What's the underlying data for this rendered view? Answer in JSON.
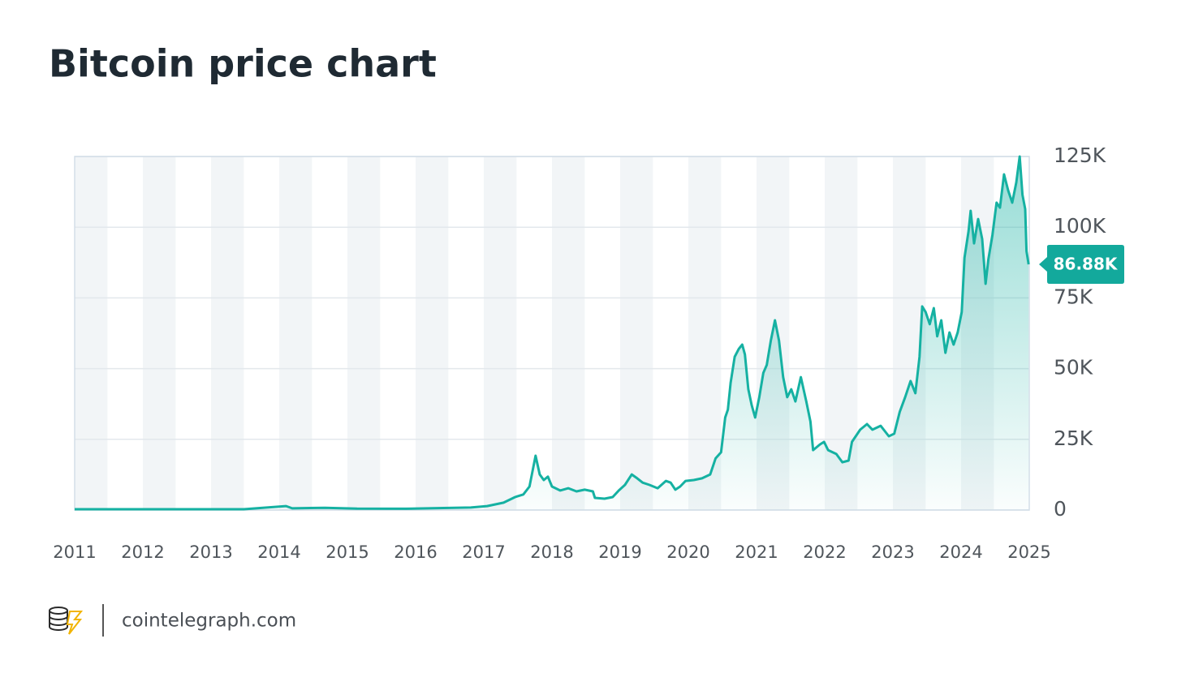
{
  "chart_data": {
    "type": "line",
    "title": "Bitcoin price chart",
    "source": "cointelegraph.com",
    "color": "#15b1a2",
    "x": [
      2011.0,
      2013.48,
      2014.1,
      2014.19,
      2014.67,
      2015.14,
      2015.86,
      2016.33,
      2016.81,
      2017.05,
      2017.29,
      2017.46,
      2017.58,
      2017.67,
      2017.76,
      2017.82,
      2017.88,
      2017.94,
      2018.0,
      2018.12,
      2018.24,
      2018.36,
      2018.48,
      2018.6,
      2018.63,
      2018.77,
      2018.89,
      2018.98,
      2019.07,
      2019.17,
      2019.25,
      2019.33,
      2019.43,
      2019.55,
      2019.67,
      2019.74,
      2019.81,
      2019.88,
      2019.96,
      2020.08,
      2020.2,
      2020.32,
      2020.4,
      2020.48,
      2020.54,
      2020.58,
      2020.62,
      2020.68,
      2020.74,
      2020.79,
      2020.83,
      2020.88,
      2020.93,
      2020.98,
      2021.04,
      2021.1,
      2021.15,
      2021.21,
      2021.27,
      2021.33,
      2021.39,
      2021.45,
      2021.51,
      2021.57,
      2021.65,
      2021.73,
      2021.79,
      2021.83,
      2021.93,
      2021.99,
      2022.05,
      2022.17,
      2022.26,
      2022.35,
      2022.4,
      2022.52,
      2022.62,
      2022.7,
      2022.82,
      2022.94,
      2023.02,
      2023.1,
      2023.18,
      2023.26,
      2023.33,
      2023.39,
      2023.43,
      2023.48,
      2023.54,
      2023.6,
      2023.65,
      2023.71,
      2023.77,
      2023.83,
      2023.89,
      2023.95,
      2024.01,
      2024.05,
      2024.11,
      2024.14,
      2024.19,
      2024.25,
      2024.31,
      2024.36,
      2024.4,
      2024.46,
      2024.52,
      2024.57,
      2024.63,
      2024.69,
      2024.75,
      2024.81,
      2024.86,
      2024.9,
      2024.94,
      2024.96,
      2024.99
    ],
    "values": [
      300,
      300,
      1400,
      600,
      800,
      500,
      450,
      700,
      900,
      1400,
      2600,
      4600,
      5500,
      8300,
      19200,
      12600,
      10600,
      11800,
      8300,
      6900,
      7700,
      6600,
      7200,
      6600,
      4300,
      4000,
      4600,
      6900,
      8900,
      12600,
      11200,
      9700,
      8900,
      7700,
      10300,
      9700,
      7200,
      8300,
      10300,
      10600,
      11200,
      12600,
      18300,
      20400,
      32700,
      35500,
      45000,
      54200,
      57000,
      58500,
      55000,
      42700,
      37000,
      32700,
      39900,
      48500,
      51300,
      59900,
      67100,
      59900,
      47000,
      39900,
      42700,
      38400,
      47000,
      38400,
      31300,
      21200,
      23200,
      24100,
      21200,
      19800,
      16900,
      17500,
      24100,
      28400,
      30400,
      28400,
      29800,
      26100,
      27000,
      34700,
      39900,
      45600,
      41300,
      54200,
      72000,
      70000,
      65700,
      71400,
      61400,
      67100,
      55600,
      62800,
      58500,
      62800,
      70000,
      89200,
      98600,
      105800,
      94300,
      102900,
      95800,
      80000,
      88600,
      97200,
      108700,
      106900,
      118700,
      113000,
      108700,
      115800,
      125000,
      111500,
      106400,
      91500,
      86880
    ],
    "value_labels": [
      null,
      null,
      null,
      null,
      null,
      null,
      null,
      null,
      null,
      null,
      null,
      null,
      null,
      null,
      null,
      null,
      null,
      null,
      null,
      null,
      null,
      null,
      null,
      null,
      null,
      null,
      null,
      null,
      null,
      null,
      null,
      null,
      null,
      null,
      null,
      null,
      null,
      null,
      null,
      null,
      null,
      null,
      null,
      null,
      null,
      null,
      null,
      null,
      null,
      null,
      null,
      null,
      null,
      null,
      null,
      null,
      null,
      null,
      null,
      null,
      null,
      null,
      null,
      null,
      null,
      null,
      null,
      null,
      null,
      null,
      null,
      null,
      null,
      null,
      null,
      null,
      null,
      null,
      null,
      null,
      null,
      null,
      null,
      null,
      null,
      null,
      null,
      null,
      null,
      null,
      null,
      null,
      null,
      null,
      null,
      null,
      null,
      null,
      null,
      null,
      null,
      null,
      null,
      null,
      null,
      null,
      null,
      null,
      null,
      null,
      null,
      null,
      null,
      null,
      null,
      null,
      "86.88K"
    ],
    "xlim": [
      2011,
      2025
    ],
    "xticks": [
      2011,
      2012,
      2013,
      2014,
      2015,
      2016,
      2017,
      2018,
      2019,
      2020,
      2021,
      2022,
      2023,
      2024,
      2025
    ],
    "ylim": [
      0,
      125000
    ],
    "yticks": [
      0,
      {
        "value": 25000,
        "label": "25K"
      },
      {
        "value": 50000,
        "label": "50K"
      },
      {
        "value": 75000,
        "label": "75K"
      },
      {
        "value": 100000,
        "label": "100K"
      },
      {
        "value": 125000,
        "label": "125K"
      }
    ],
    "grid": true
  }
}
